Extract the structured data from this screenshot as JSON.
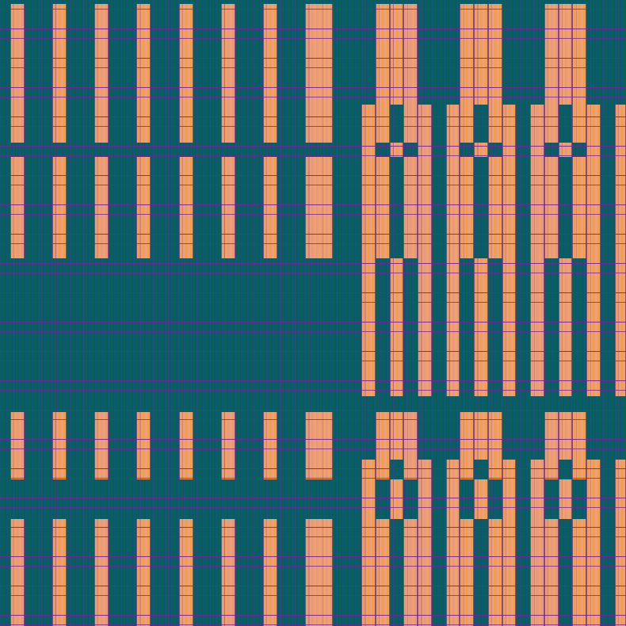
{
  "pattern": {
    "colors": {
      "background_teal": "#0b5d6b",
      "background_blue": "#0b4e9a",
      "background_green": "#0c6446",
      "block_orange": "#f4a12a",
      "block_pink": "#e9998c",
      "grid_purple": "#781ea0"
    }
  }
}
